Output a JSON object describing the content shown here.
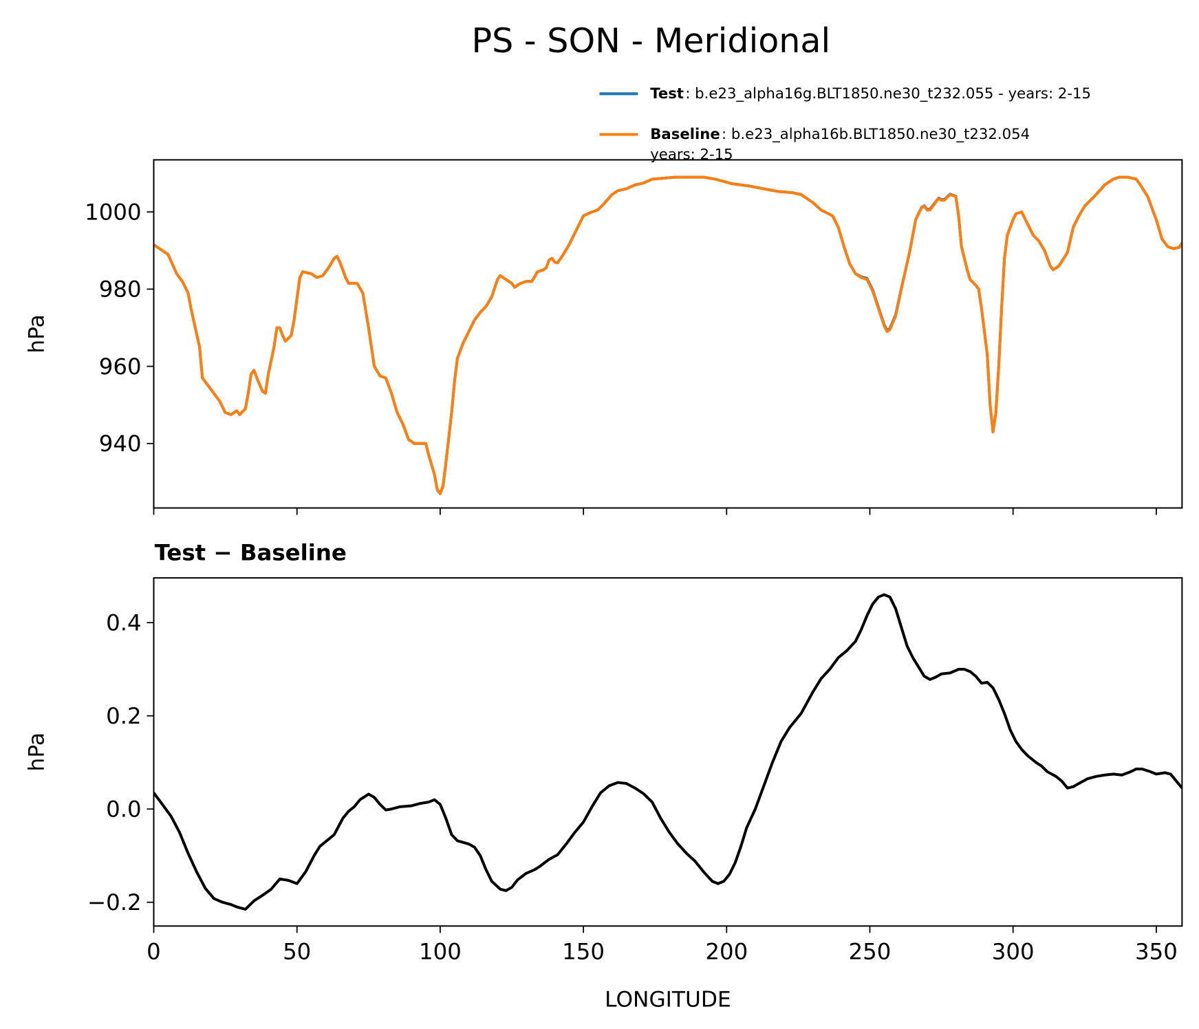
{
  "chart_data": [
    {
      "type": "line",
      "title": "PS - SON - Meridional",
      "ylabel": "hPa",
      "xlim": [
        0,
        359
      ],
      "ylim": [
        923.3,
        1013.5
      ],
      "yticks": [
        940,
        960,
        980,
        1000
      ],
      "legend": "upper right",
      "x": [
        0,
        3,
        5,
        8,
        10,
        12,
        13,
        16,
        17,
        19,
        21,
        23,
        25,
        27,
        29,
        30,
        32,
        33,
        34,
        35,
        36,
        38,
        39,
        40,
        42,
        43,
        44,
        45,
        46,
        48,
        49,
        51,
        52,
        55,
        57,
        59,
        61,
        63,
        64,
        65,
        67,
        68,
        71,
        73,
        75,
        77,
        79,
        81,
        83,
        85,
        87,
        89,
        91,
        93,
        95,
        96,
        98,
        99,
        100,
        101,
        102,
        104,
        105,
        106,
        108,
        110,
        112,
        114,
        116,
        118,
        120,
        121,
        122,
        125,
        126,
        128,
        130,
        132,
        134,
        136,
        137,
        138,
        139,
        140,
        141,
        143,
        145,
        147,
        150,
        153,
        155,
        157,
        160,
        162,
        165,
        168,
        171,
        174,
        182,
        192,
        196,
        202,
        208,
        213,
        218,
        223,
        226,
        230,
        233,
        237,
        239,
        241,
        243,
        245,
        247,
        249,
        251,
        253,
        255,
        256,
        257,
        259,
        261,
        264,
        266,
        268,
        269,
        270,
        271,
        272,
        274,
        275,
        276,
        278,
        280,
        281,
        282,
        284,
        285,
        287,
        288,
        289,
        291,
        292,
        293,
        294,
        295,
        296,
        297,
        298,
        300,
        301,
        303,
        305,
        307,
        309,
        311,
        313,
        314,
        316,
        319,
        321,
        323,
        325,
        327,
        329,
        332,
        335,
        337,
        340,
        343,
        344,
        347,
        349,
        350,
        352,
        354,
        356,
        358,
        359
      ],
      "series": [
        {
          "name": "Test",
          "description": [
            ": b.e23_alpha16g.BLT1850.ne30_t232.055 - years: 2-15"
          ],
          "color": "#1f77b4",
          "values": [
            991.5,
            990,
            989,
            984,
            982,
            979,
            975,
            965,
            957,
            955,
            953,
            951,
            948,
            947.5,
            948.5,
            947.5,
            949,
            953,
            958,
            959,
            957,
            953.5,
            953,
            958,
            965,
            970,
            970,
            968,
            966.5,
            968,
            972,
            983,
            984.5,
            984,
            983,
            983.5,
            985.5,
            988,
            988.5,
            987,
            983,
            981.5,
            981.5,
            979,
            970,
            960,
            957.5,
            957,
            953,
            948,
            945,
            941,
            940,
            940,
            940,
            937,
            932,
            928,
            927,
            929,
            935,
            948,
            956,
            962,
            966,
            969,
            972,
            974,
            975.5,
            978,
            982.5,
            983.5,
            983,
            981.5,
            980.5,
            981.5,
            982,
            982,
            984.5,
            985,
            985.5,
            987.5,
            988,
            987,
            986.8,
            989,
            991.5,
            994.5,
            999,
            1000,
            1000.5,
            1002,
            1004.5,
            1005.5,
            1006,
            1007,
            1007.5,
            1008.5,
            1009,
            1009,
            1008.5,
            1007.3,
            1006.7,
            1006,
            1005.3,
            1005,
            1004.5,
            1002.5,
            1000.5,
            999,
            996,
            991,
            986.5,
            984,
            983.2,
            982.8,
            979.8,
            975.3,
            970.8,
            969.3,
            969.8,
            973.3,
            980.2,
            990,
            998,
            1001.1,
            1001.6,
            1000.7,
            1000.7,
            1001.7,
            1003.6,
            1003.2,
            1003.2,
            1004.6,
            1004.1,
            999,
            991,
            985,
            982.5,
            981,
            980,
            975,
            963,
            950,
            943,
            948,
            960,
            975,
            988,
            994,
            998,
            999.5,
            1000,
            997,
            994,
            992.5,
            990,
            986,
            985,
            986,
            989.5,
            996,
            999,
            1001.5,
            1003,
            1004.5,
            1007,
            1008.5,
            1009,
            1009,
            1008.5,
            1007.5,
            1004,
            1000,
            998,
            993,
            991,
            990.5,
            990.8,
            992
          ]
        },
        {
          "name": "Baseline",
          "description": [
            ": b.e23_alpha16b.BLT1850.ne30_t232.054",
            "years: 2-15"
          ],
          "color": "#ff7f0e",
          "values": [
            991.5,
            990,
            989,
            984,
            982,
            979,
            975,
            965,
            957,
            955,
            953,
            951,
            948,
            947.5,
            948.5,
            947.5,
            949,
            953,
            958,
            959,
            957,
            953.5,
            953,
            958,
            965,
            970,
            970,
            968,
            966.5,
            968,
            972,
            983,
            984.5,
            984,
            983,
            983.5,
            985.5,
            988,
            988.5,
            987,
            983,
            981.5,
            981.5,
            979,
            970,
            960,
            957.5,
            957,
            953,
            948,
            945,
            941,
            940,
            940,
            940,
            937,
            932,
            928,
            927,
            929,
            935,
            948,
            956,
            962,
            966,
            969,
            972,
            974,
            975.5,
            978,
            982.5,
            983.5,
            983,
            981.5,
            980.5,
            981.5,
            982,
            982,
            984.5,
            985,
            985.5,
            987.5,
            988,
            987,
            986.8,
            989,
            991.5,
            994.5,
            999,
            1000,
            1000.5,
            1002,
            1004.5,
            1005.5,
            1006,
            1007,
            1007.5,
            1008.5,
            1009,
            1009,
            1008.5,
            1007.3,
            1006.7,
            1006,
            1005.3,
            1005,
            1004.5,
            1002.5,
            1000.5,
            999,
            996,
            991,
            986.5,
            984,
            983,
            982.5,
            979.5,
            975,
            970.5,
            969,
            969.5,
            973,
            980,
            990,
            998,
            1001,
            1001.5,
            1000.5,
            1000.5,
            1001.5,
            1003.5,
            1003,
            1003,
            1004.5,
            1004,
            999,
            991,
            985,
            982.5,
            981,
            980,
            975,
            963,
            950,
            943,
            948,
            960,
            975,
            988,
            994,
            998,
            999.5,
            1000,
            997,
            994,
            992.5,
            990,
            986,
            985,
            986,
            989.5,
            996,
            999,
            1001.5,
            1003,
            1004.5,
            1007,
            1008.5,
            1009,
            1009,
            1008.5,
            1007.5,
            1004,
            1000,
            998,
            993,
            991,
            990.5,
            990.8,
            992
          ]
        }
      ]
    },
    {
      "type": "line",
      "title": "Test − Baseline",
      "xlabel": "LONGITUDE",
      "ylabel": "hPa",
      "xlim": [
        0,
        359
      ],
      "ylim": [
        -0.251,
        0.496
      ],
      "xticks": [
        0,
        50,
        100,
        150,
        200,
        250,
        300,
        350
      ],
      "yticks": [
        {
          "value": -0.2,
          "label": "−0.2"
        },
        {
          "value": 0,
          "label": "0.0"
        },
        0.2,
        0.4
      ],
      "x": [
        0,
        3,
        6,
        9,
        12,
        15,
        18,
        21,
        24,
        27,
        29,
        32,
        35,
        38,
        41,
        44,
        47,
        50,
        53,
        56,
        58,
        61,
        63,
        66,
        68,
        70,
        72,
        75,
        77,
        79,
        81,
        83,
        86,
        90,
        93,
        96,
        98,
        100,
        102,
        104,
        106,
        110,
        112,
        114,
        116,
        118,
        121,
        123,
        125,
        127,
        130,
        133,
        135,
        138,
        141,
        144,
        147,
        150,
        153,
        156,
        159,
        162,
        165,
        168,
        171,
        174,
        177,
        180,
        183,
        186,
        189,
        192,
        195,
        197,
        199,
        201,
        203,
        205,
        207,
        210,
        213,
        216,
        219,
        222,
        226,
        230,
        233,
        236,
        239,
        242,
        245,
        247,
        249,
        251,
        253,
        255,
        257,
        259,
        261,
        263,
        265,
        267,
        269,
        271,
        273,
        275,
        278,
        281,
        283,
        285,
        287,
        289,
        291,
        293,
        295,
        297,
        299,
        301,
        303,
        305,
        308,
        310,
        312,
        315,
        317,
        319,
        321,
        323,
        326,
        329,
        332,
        335,
        338,
        341,
        343,
        345,
        348,
        350,
        353,
        355,
        357,
        359
      ],
      "series": [
        {
          "name": "Test − Baseline",
          "color": "#000000",
          "values": [
            0.035,
            0.01,
            -0.015,
            -0.05,
            -0.095,
            -0.135,
            -0.17,
            -0.192,
            -0.2,
            -0.205,
            -0.21,
            -0.215,
            -0.197,
            -0.185,
            -0.172,
            -0.15,
            -0.153,
            -0.16,
            -0.135,
            -0.1,
            -0.08,
            -0.065,
            -0.055,
            -0.02,
            -0.005,
            0.005,
            0.02,
            0.032,
            0.025,
            0.01,
            -0.002,
            0,
            0.005,
            0.007,
            0.012,
            0.015,
            0.02,
            0.01,
            -0.02,
            -0.055,
            -0.068,
            -0.075,
            -0.082,
            -0.1,
            -0.13,
            -0.155,
            -0.172,
            -0.175,
            -0.168,
            -0.152,
            -0.138,
            -0.13,
            -0.122,
            -0.108,
            -0.098,
            -0.075,
            -0.05,
            -0.028,
            0.005,
            0.035,
            0.05,
            0.057,
            0.055,
            0.045,
            0.033,
            0.015,
            -0.02,
            -0.05,
            -0.075,
            -0.095,
            -0.112,
            -0.135,
            -0.155,
            -0.16,
            -0.155,
            -0.14,
            -0.115,
            -0.08,
            -0.04,
            0,
            0.05,
            0.1,
            0.145,
            0.175,
            0.205,
            0.25,
            0.28,
            0.3,
            0.325,
            0.34,
            0.36,
            0.385,
            0.415,
            0.44,
            0.455,
            0.46,
            0.455,
            0.43,
            0.39,
            0.35,
            0.325,
            0.305,
            0.285,
            0.278,
            0.283,
            0.29,
            0.292,
            0.3,
            0.3,
            0.295,
            0.285,
            0.27,
            0.272,
            0.26,
            0.235,
            0.205,
            0.17,
            0.145,
            0.128,
            0.115,
            0.1,
            0.092,
            0.08,
            0.07,
            0.06,
            0.045,
            0.048,
            0.055,
            0.065,
            0.07,
            0.073,
            0.075,
            0.073,
            0.08,
            0.086,
            0.086,
            0.08,
            0.075,
            0.078,
            0.075,
            0.06,
            0.045
          ]
        }
      ]
    }
  ]
}
